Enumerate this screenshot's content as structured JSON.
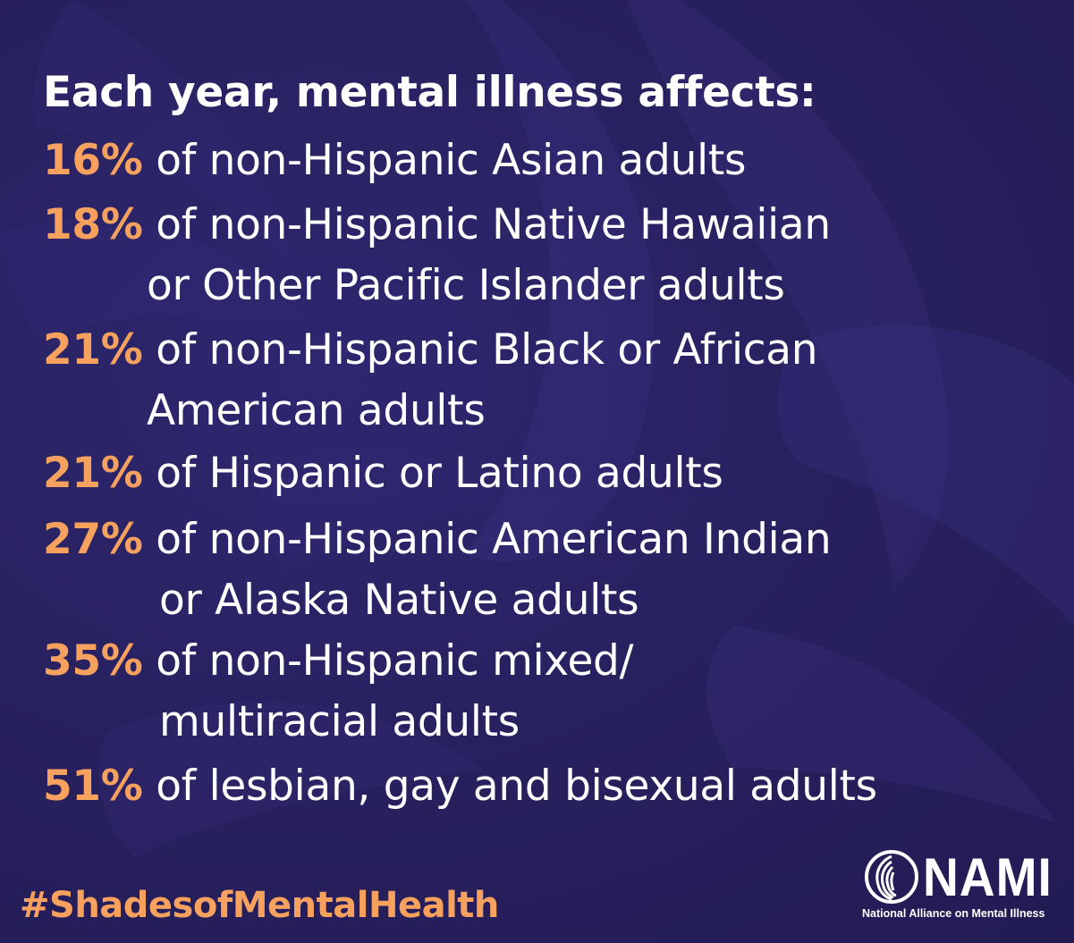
{
  "headline": "Each year, mental illness affects:",
  "stats": [
    {
      "percent": "16%",
      "line1": "of non-Hispanic Asian adults",
      "line2": ""
    },
    {
      "percent": "18%",
      "line1": "of non-Hispanic Native Hawaiian",
      "line2": "or Other Pacific Islander adults"
    },
    {
      "percent": "21%",
      "line1": "of non-Hispanic Black or African",
      "line2": "American adults"
    },
    {
      "percent": "21%",
      "line1": "of Hispanic or Latino adults",
      "line2": ""
    },
    {
      "percent": "27%",
      "line1": "of non-Hispanic American Indian",
      "line2": "or Alaska Native adults"
    },
    {
      "percent": "35%",
      "line1": "of non-Hispanic mixed/",
      "line2": "multiracial adults"
    },
    {
      "percent": "51%",
      "line1": "of lesbian, gay and bisexual adults",
      "line2": ""
    }
  ],
  "hashtag": "#ShadesofMentalHealth",
  "logo": {
    "wordmark": "NAMI",
    "tagline": "National Alliance on Mental Illness",
    "icon": "nami-swirl-icon"
  },
  "colors": {
    "background": "#27205d",
    "accent": "#f7a15f",
    "text": "#ffffff"
  }
}
